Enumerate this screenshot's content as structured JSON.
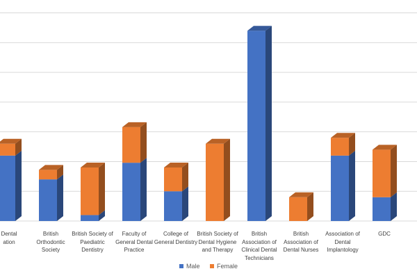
{
  "chart_data": {
    "type": "bar",
    "stacked": true,
    "style": "3d-column",
    "categories": [
      "British Dental Association",
      "British Orthodontic Society",
      "British Society of Paediatric Dentistry",
      "Faculty of General Dental Practice",
      "College of General Dentistry",
      "British Society of Dental Hygiene and Therapy",
      "British Association of Clinical Dental Technicians",
      "British Association of Dental Nurses",
      "Association of Dental Implantology",
      "GDC"
    ],
    "visible_category_labels": [
      "Dental\nation",
      "British\nOrthodontic\nSociety",
      "British Society of\nPaediatric\nDentistry",
      "Faculty of\nGeneral Dental\nPractice",
      "College of\nGeneral Dentistry",
      "British Society of\nDental Hygiene\nand Therapy",
      "British\nAssociation of\nClinical Dental\nTechnicians",
      "British\nAssociation of\nDental Nurses",
      "Association of\nDental\nImplantology",
      "GDC"
    ],
    "series": [
      {
        "name": "Male",
        "color": "#4472C4",
        "values": [
          5.5,
          3.5,
          0.5,
          4.9,
          2.5,
          0,
          16.0,
          0,
          5.5,
          2.0
        ]
      },
      {
        "name": "Female",
        "color": "#ED7D31",
        "values": [
          1.0,
          0.8,
          4.0,
          3.0,
          2.0,
          6.5,
          0,
          2.0,
          1.5,
          4.0
        ]
      }
    ],
    "ylim": [
      0,
      18
    ],
    "ytick_step": 2.5,
    "grid": true,
    "legend_position": "bottom"
  }
}
